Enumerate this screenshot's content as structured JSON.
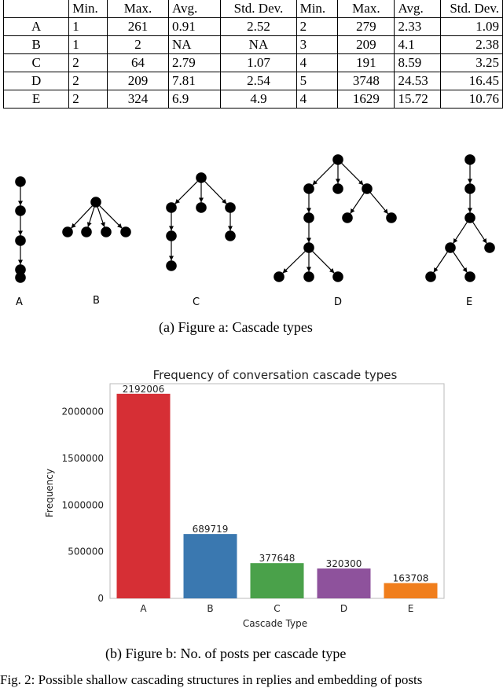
{
  "table": {
    "headers": [
      "",
      "Min.",
      "Max.",
      "Avg.",
      "Std. Dev.",
      "Min.",
      "Max.",
      "Avg.",
      "Std. Dev."
    ],
    "rows": [
      [
        "A",
        "1",
        "261",
        "0.91",
        "2.52",
        "2",
        "279",
        "2.33",
        "1.09"
      ],
      [
        "B",
        "1",
        "2",
        "NA",
        "NA",
        "3",
        "209",
        "4.1",
        "2.38"
      ],
      [
        "C",
        "2",
        "64",
        "2.79",
        "1.07",
        "4",
        "191",
        "8.59",
        "3.25"
      ],
      [
        "D",
        "2",
        "209",
        "7.81",
        "2.54",
        "5",
        "3748",
        "24.53",
        "16.45"
      ],
      [
        "E",
        "2",
        "324",
        "6.9",
        "4.9",
        "4",
        "1629",
        "15.72",
        "10.76"
      ]
    ]
  },
  "figure_a": {
    "labels": [
      "A",
      "B",
      "C",
      "D",
      "E"
    ],
    "caption": "(a) Figure a: Cascade types"
  },
  "figure_b": {
    "caption": "(b) Figure b: No. of posts per cascade type"
  },
  "chart_data": {
    "type": "bar",
    "title": "Frequency of conversation cascade types",
    "xlabel": "Cascade Type",
    "ylabel": "Frequency",
    "categories": [
      "A",
      "B",
      "C",
      "D",
      "E"
    ],
    "values": [
      2192006,
      689719,
      377648,
      320300,
      163708
    ],
    "colors": [
      "#d62f35",
      "#3a78b0",
      "#4aa14a",
      "#8e529c",
      "#f07e1c"
    ],
    "ylim": [
      0,
      2300000
    ],
    "yticks": [
      0,
      500000,
      1000000,
      1500000,
      2000000
    ],
    "ytick_labels": [
      "0",
      "500000",
      "1000000",
      "1500000",
      "2000000"
    ],
    "grid": false
  },
  "footer_text": "Fig. 2: Possible shallow cascading structures in replies and embedding of posts"
}
